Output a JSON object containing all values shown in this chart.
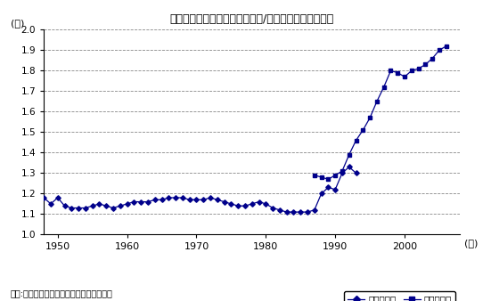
{
  "title": "一人当たり雇用者報酷（金融業/その他の産業の比率）",
  "ylabel": "(倍)",
  "xlabel_suffix": "(年)",
  "source_text": "出所:米国商務省経済分析局の統計より作成",
  "legend_old": "旧業種分類",
  "legend_new": "新業種分類",
  "ylim": [
    1.0,
    2.0
  ],
  "yticks": [
    1.0,
    1.1,
    1.2,
    1.3,
    1.4,
    1.5,
    1.6,
    1.7,
    1.8,
    1.9,
    2.0
  ],
  "xlim": [
    1948,
    2008
  ],
  "xticks": [
    1950,
    1960,
    1970,
    1980,
    1990,
    2000
  ],
  "line_color": "#00008B",
  "old_series": {
    "years": [
      1948,
      1949,
      1950,
      1951,
      1952,
      1953,
      1954,
      1955,
      1956,
      1957,
      1958,
      1959,
      1960,
      1961,
      1962,
      1963,
      1964,
      1965,
      1966,
      1967,
      1968,
      1969,
      1970,
      1971,
      1972,
      1973,
      1974,
      1975,
      1976,
      1977,
      1978,
      1979,
      1980,
      1981,
      1982,
      1983,
      1984,
      1985,
      1986,
      1987,
      1988,
      1989,
      1990,
      1991,
      1992,
      1993
    ],
    "values": [
      1.18,
      1.15,
      1.18,
      1.14,
      1.13,
      1.13,
      1.13,
      1.14,
      1.15,
      1.14,
      1.13,
      1.14,
      1.15,
      1.16,
      1.16,
      1.16,
      1.17,
      1.17,
      1.18,
      1.18,
      1.18,
      1.17,
      1.17,
      1.17,
      1.18,
      1.17,
      1.16,
      1.15,
      1.14,
      1.14,
      1.15,
      1.16,
      1.15,
      1.13,
      1.12,
      1.11,
      1.11,
      1.11,
      1.11,
      1.12,
      1.2,
      1.23,
      1.22,
      1.3,
      1.33,
      1.3
    ]
  },
  "new_series": {
    "years": [
      1987,
      1988,
      1989,
      1990,
      1991,
      1992,
      1993,
      1994,
      1995,
      1996,
      1997,
      1998,
      1999,
      2000,
      2001,
      2002,
      2003,
      2004,
      2005,
      2006
    ],
    "values": [
      1.29,
      1.28,
      1.27,
      1.29,
      1.31,
      1.39,
      1.46,
      1.51,
      1.57,
      1.65,
      1.72,
      1.8,
      1.79,
      1.77,
      1.8,
      1.81,
      1.83,
      1.86,
      1.9,
      1.92
    ]
  },
  "bg_color": "#ffffff",
  "plot_bg_color": "#ffffff"
}
